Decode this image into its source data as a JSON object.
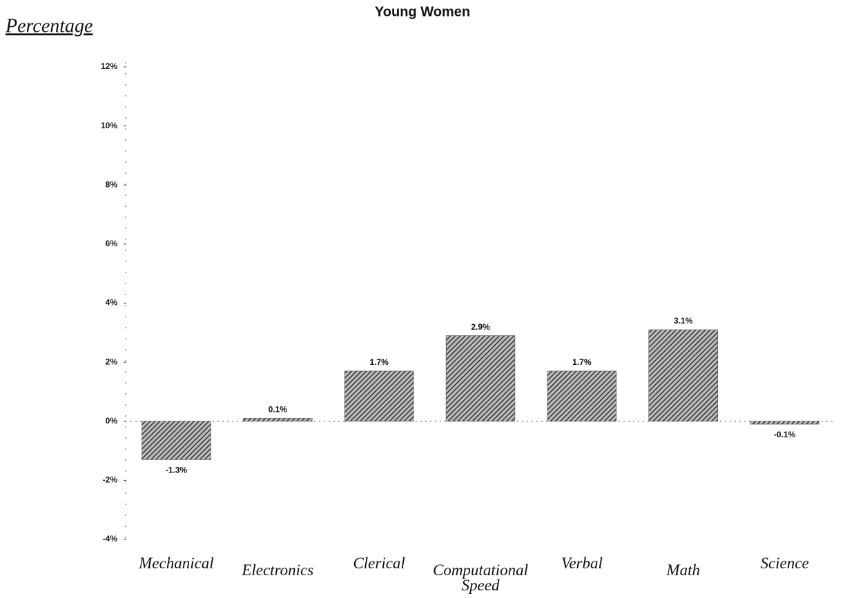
{
  "chart_data": {
    "type": "bar",
    "title": "Young Women",
    "y_label": "Percentage",
    "categories": [
      "Mechanical",
      "Electronics",
      "Clerical",
      "Computational Speed",
      "Verbal",
      "Math",
      "Science"
    ],
    "values": [
      -1.3,
      0.1,
      1.7,
      2.9,
      1.7,
      3.1,
      -0.1
    ],
    "value_labels": [
      "-1.3%",
      "0.1%",
      "1.7%",
      "2.9%",
      "1.7%",
      "3.1%",
      "-0.1%"
    ],
    "color": "#333333",
    "ylim": [
      -4,
      12
    ],
    "yticks": [
      {
        "value": -4,
        "label": "-4%"
      },
      {
        "value": -2,
        "label": "-2%"
      },
      {
        "value": 0,
        "label": "0%"
      },
      {
        "value": 2,
        "label": "2%"
      },
      {
        "value": 4,
        "label": "4%"
      },
      {
        "value": 6,
        "label": "6%"
      },
      {
        "value": 8,
        "label": "8%"
      },
      {
        "value": 10,
        "label": "10%"
      },
      {
        "value": 12,
        "label": "12%"
      }
    ],
    "grid": false
  }
}
